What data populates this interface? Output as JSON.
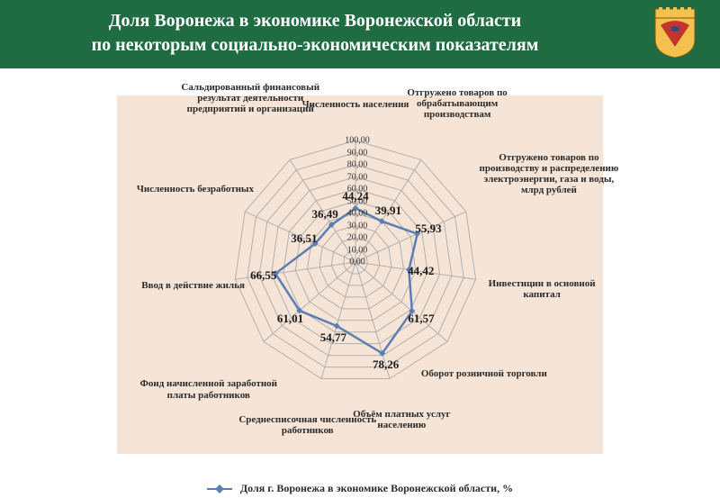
{
  "header": {
    "line1": "Доля Воронежа в экономике Воронежской области",
    "line2": "по некоторым социально-экономическим показателям"
  },
  "chart": {
    "type": "radar",
    "background_color": "#f6e4d6",
    "grid_color": "#b0b0b0",
    "line_color": "#5b7fb3",
    "marker_color": "#5b7fb3",
    "marker_style": "diamond",
    "marker_size": 7,
    "line_width": 2.5,
    "axis_max": 100,
    "ring_step": 10,
    "ring_labels_fmt": "F2",
    "axes": [
      {
        "label": "Численность населения",
        "value": 44.24
      },
      {
        "label": "Отгружено товаров по обрабатывающим производствам",
        "value": 39.91
      },
      {
        "label": "Отгружено товаров по производству и распределению электроэнергии, газа и воды, млрд рублей",
        "value": 55.93
      },
      {
        "label": "Инвестиции в основной капитал",
        "value": 44.42
      },
      {
        "label": "Оборот розничной торговли",
        "value": 61.57
      },
      {
        "label": "Объём платных услуг населению",
        "value": 78.26
      },
      {
        "label": "Среднесписочная численность работников",
        "value": 54.77
      },
      {
        "label": "Фонд начисленной заработной платы работников",
        "value": 61.01
      },
      {
        "label": "Ввод в действие жилья",
        "value": 66.55
      },
      {
        "label": "Численность безработных",
        "value": 36.51
      },
      {
        "label": "Сальдированный финансовый результат деятельности предприятий и организаций",
        "value": 36.49
      }
    ],
    "legend": "Доля г. Воронежа в экономике Воронежской области, %"
  }
}
